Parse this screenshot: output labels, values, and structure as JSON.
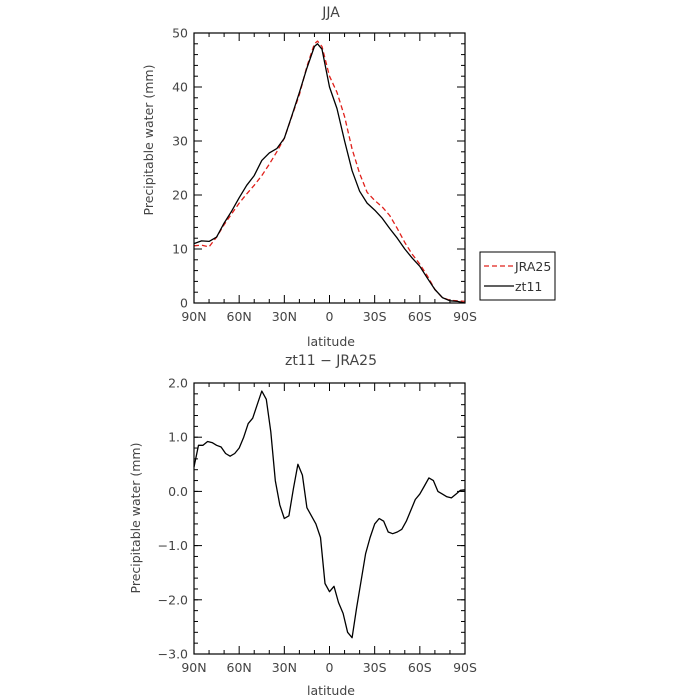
{
  "chart_data": [
    {
      "type": "line",
      "title": "JJA",
      "xlabel": "latitude",
      "ylabel": "Precipitable water (mm)",
      "xlim": [
        90,
        -90
      ],
      "ylim": [
        0,
        50
      ],
      "xticks": [
        90,
        60,
        30,
        0,
        -30,
        -60,
        -90
      ],
      "xtick_labels": [
        "90N",
        "60N",
        "30N",
        "0",
        "30S",
        "60S",
        "90S"
      ],
      "yticks": [
        0,
        10,
        20,
        30,
        40,
        50
      ],
      "ytick_labels": [
        "0",
        "10",
        "20",
        "30",
        "40",
        "50"
      ],
      "legend": {
        "placement": "outside-right",
        "entries": [
          "JRA25",
          "zt11"
        ]
      },
      "series": [
        {
          "name": "JRA25",
          "color": "#e0201b",
          "dash": "dashed",
          "x": [
            90,
            85,
            80,
            75,
            70,
            65,
            60,
            55,
            50,
            45,
            40,
            35,
            30,
            25,
            20,
            15,
            10,
            8,
            5,
            0,
            -5,
            -10,
            -15,
            -20,
            -25,
            -30,
            -35,
            -40,
            -45,
            -50,
            -55,
            -60,
            -65,
            -70,
            -75,
            -80,
            -85,
            -90
          ],
          "values": [
            10.6,
            10.7,
            10.4,
            12.2,
            14.5,
            16.5,
            18.5,
            20.2,
            21.8,
            23.6,
            25.7,
            28.0,
            30.5,
            34.6,
            38.6,
            43.8,
            48.0,
            48.5,
            47.5,
            42.0,
            39.0,
            34.5,
            28.5,
            24.0,
            20.5,
            19.0,
            17.8,
            16.2,
            13.8,
            11.2,
            9.0,
            7.2,
            5.0,
            2.5,
            1.0,
            0.5,
            0.4,
            0.3
          ]
        },
        {
          "name": "zt11",
          "color": "#000000",
          "dash": "solid",
          "x": [
            90,
            85,
            80,
            75,
            70,
            65,
            60,
            55,
            50,
            45,
            40,
            35,
            30,
            25,
            20,
            15,
            10,
            8,
            5,
            0,
            -5,
            -10,
            -15,
            -20,
            -25,
            -30,
            -35,
            -40,
            -45,
            -50,
            -55,
            -60,
            -65,
            -70,
            -75,
            -80,
            -85,
            -90
          ],
          "values": [
            11.0,
            11.5,
            11.4,
            12.2,
            14.8,
            17.0,
            19.5,
            21.8,
            23.6,
            26.4,
            27.8,
            28.6,
            30.5,
            34.7,
            39.0,
            43.5,
            47.5,
            48.0,
            47.0,
            40.0,
            36.0,
            30.0,
            24.5,
            20.7,
            18.5,
            17.2,
            15.7,
            13.8,
            12.0,
            10.0,
            8.3,
            6.8,
            4.6,
            2.5,
            1.0,
            0.4,
            0.3,
            0.0
          ]
        }
      ]
    },
    {
      "type": "line",
      "title": "zt11 − JRA25",
      "xlabel": "latitude",
      "ylabel": "Precipitable water (mm)",
      "xlim": [
        90,
        -90
      ],
      "ylim": [
        -3.0,
        2.0
      ],
      "xticks": [
        90,
        60,
        30,
        0,
        -30,
        -60,
        -90
      ],
      "xtick_labels": [
        "90N",
        "60N",
        "30N",
        "0",
        "30S",
        "60S",
        "90S"
      ],
      "yticks": [
        2.0,
        1.0,
        0.0,
        -1.0,
        -2.0,
        -3.0
      ],
      "ytick_labels": [
        "2.0",
        "1.0",
        "0.0",
        "−1.0",
        "−2.0",
        "−3.0"
      ],
      "series": [
        {
          "color": "#000000",
          "dash": "solid",
          "x": [
            90,
            87,
            84,
            81,
            78,
            75,
            72,
            69,
            66,
            63,
            60,
            57,
            54,
            51,
            48,
            45,
            42,
            39,
            36,
            33,
            30,
            27,
            24,
            21,
            18,
            15,
            12,
            9,
            6,
            3,
            0,
            -3,
            -6,
            -9,
            -12,
            -15,
            -18,
            -21,
            -24,
            -27,
            -30,
            -33,
            -36,
            -39,
            -42,
            -45,
            -48,
            -51,
            -54,
            -57,
            -60,
            -63,
            -66,
            -69,
            -72,
            -75,
            -78,
            -81,
            -84,
            -87,
            -90
          ],
          "values": [
            0.45,
            0.85,
            0.85,
            0.92,
            0.9,
            0.85,
            0.82,
            0.7,
            0.65,
            0.7,
            0.8,
            1.0,
            1.25,
            1.35,
            1.6,
            1.85,
            1.7,
            1.1,
            0.2,
            -0.25,
            -0.5,
            -0.45,
            0.05,
            0.5,
            0.3,
            -0.3,
            -0.45,
            -0.6,
            -0.85,
            -1.7,
            -1.85,
            -1.75,
            -2.05,
            -2.25,
            -2.6,
            -2.7,
            -2.15,
            -1.65,
            -1.15,
            -0.85,
            -0.6,
            -0.5,
            -0.55,
            -0.75,
            -0.78,
            -0.75,
            -0.7,
            -0.55,
            -0.35,
            -0.15,
            -0.05,
            0.1,
            0.25,
            0.2,
            0.0,
            -0.05,
            -0.1,
            -0.12,
            -0.05,
            0.02,
            0.03
          ]
        }
      ]
    }
  ]
}
